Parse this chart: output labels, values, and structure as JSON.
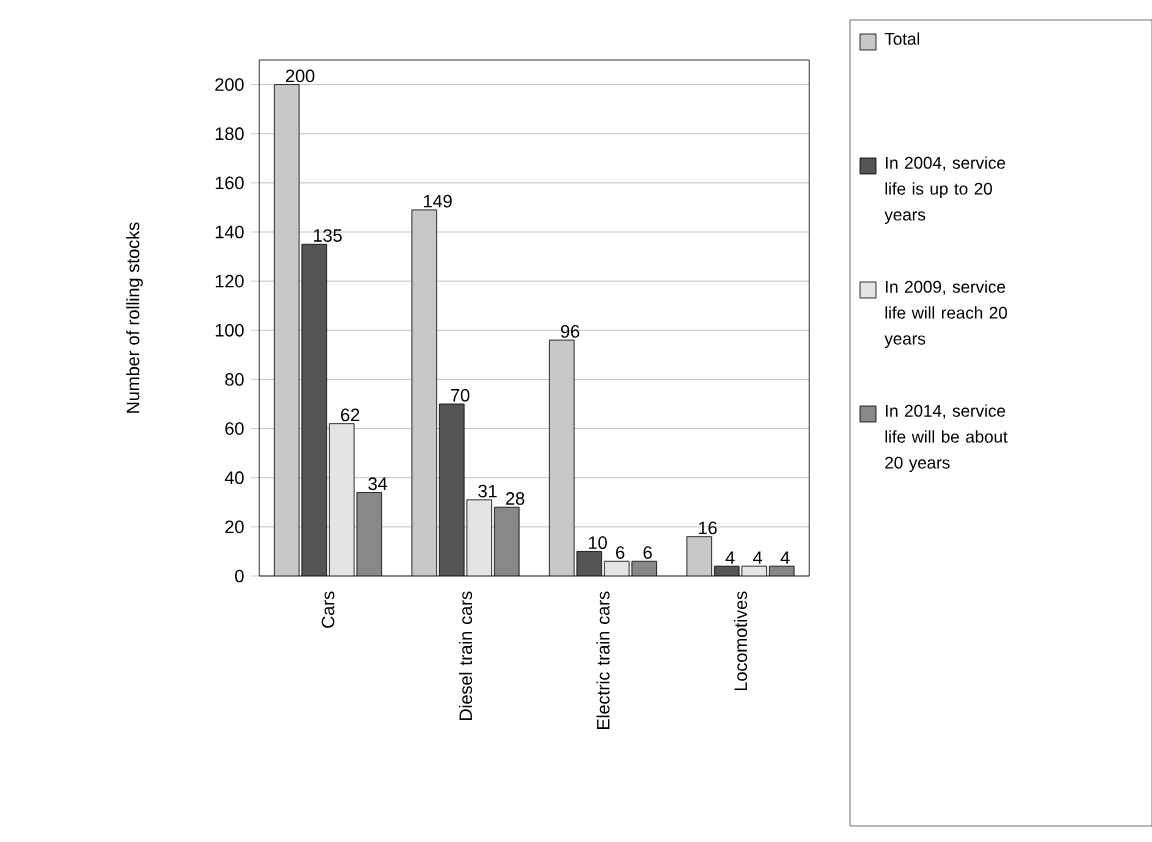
{
  "chart_data": {
    "type": "bar",
    "ylabel": "Number of rolling stocks",
    "categories": [
      "Cars",
      "Diesel train cars",
      "Electric train cars",
      "Locomotives"
    ],
    "series": [
      {
        "name": "Total",
        "color": "#c8c8c8",
        "values": [
          200,
          149,
          96,
          16
        ]
      },
      {
        "name": "In 2004, service life is up to 20 years",
        "color": "#555555",
        "values": [
          135,
          70,
          10,
          4
        ]
      },
      {
        "name": "In 2009, service life will reach 20 years",
        "color": "#e4e4e4",
        "values": [
          62,
          31,
          6,
          4
        ]
      },
      {
        "name": "In 2014, service life will be about 20 years",
        "color": "#888888",
        "values": [
          34,
          28,
          6,
          4
        ]
      }
    ],
    "ylim": [
      0,
      210
    ],
    "yticks": [
      0,
      20,
      40,
      60,
      80,
      100,
      120,
      140,
      160,
      180,
      200
    ],
    "grid": "y",
    "legend": "right",
    "data_labels": true
  }
}
